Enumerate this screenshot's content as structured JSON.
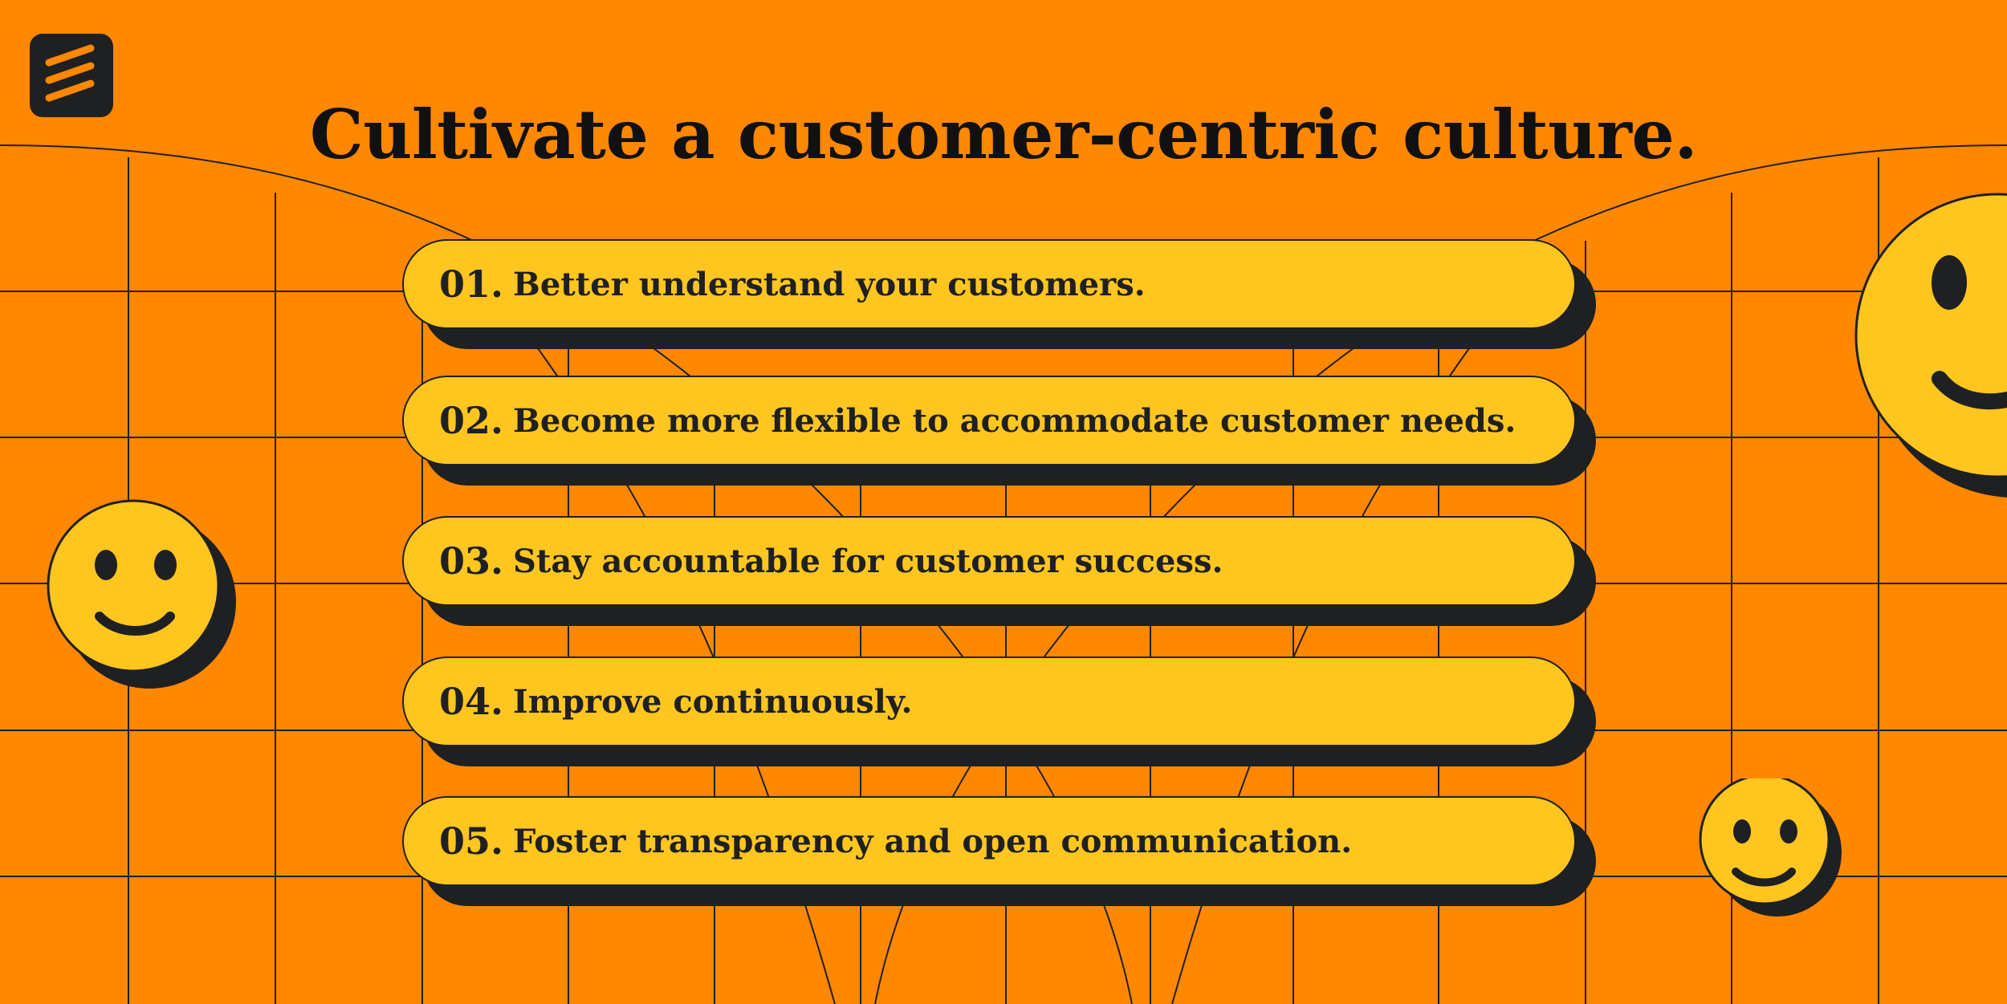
{
  "page": {
    "title": "Cultivate a customer-centric culture.",
    "colors": {
      "background": "#FF8800",
      "pill": "#FFC61F",
      "ink": "#1F2022"
    }
  },
  "logo": {
    "icon": "stacked-slashes-logo-icon"
  },
  "items": [
    {
      "number": "01.",
      "text": "Better understand your customers."
    },
    {
      "number": "02.",
      "text": "Become more flexible to accommodate customer needs."
    },
    {
      "number": "03.",
      "text": "Stay accountable for customer success."
    },
    {
      "number": "04.",
      "text": "Improve continuously."
    },
    {
      "number": "05.",
      "text": "Foster transparency and open communication."
    }
  ],
  "decorations": [
    "smiley-face-icon",
    "smiley-face-icon",
    "smiley-face-icon"
  ]
}
